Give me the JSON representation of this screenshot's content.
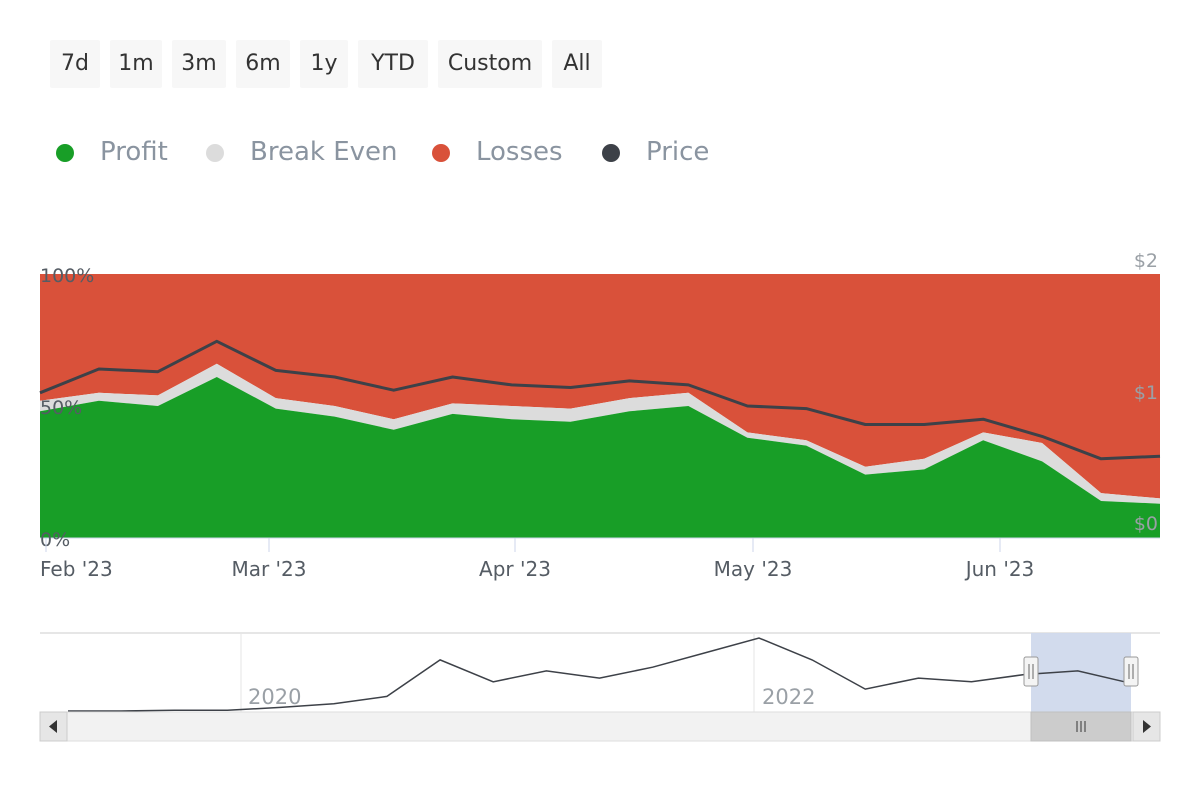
{
  "range_selector": {
    "buttons": [
      "7d",
      "1m",
      "3m",
      "6m",
      "1y",
      "YTD",
      "Custom",
      "All"
    ]
  },
  "legend": [
    {
      "label": "Profit",
      "color": "#189e27"
    },
    {
      "label": "Break Even",
      "color": "#dcdcdc"
    },
    {
      "label": "Losses",
      "color": "#d9513a"
    },
    {
      "label": "Price",
      "color": "#3d4148"
    }
  ],
  "colors": {
    "profit": "#189e27",
    "break_even": "#dcdcdc",
    "losses": "#d9513a",
    "price": "#3d4148",
    "navigator_mask": "#d0d9ec"
  },
  "chart_data": {
    "type": "area",
    "stacking": "percent",
    "x": [
      "2023-02-01",
      "2023-02-08",
      "2023-02-15",
      "2023-02-22",
      "2023-03-01",
      "2023-03-08",
      "2023-03-15",
      "2023-03-22",
      "2023-04-01",
      "2023-04-08",
      "2023-04-15",
      "2023-04-22",
      "2023-05-01",
      "2023-05-08",
      "2023-05-15",
      "2023-05-22",
      "2023-06-01",
      "2023-06-08",
      "2023-06-15",
      "2023-06-22"
    ],
    "series": [
      {
        "name": "Profit",
        "unit": "%",
        "values": [
          48,
          52,
          50,
          61,
          49,
          46,
          41,
          47,
          45,
          44,
          48,
          50,
          38,
          35,
          24,
          26,
          37,
          29,
          14,
          13
        ]
      },
      {
        "name": "Break Even",
        "unit": "%",
        "values": [
          4,
          3,
          4,
          5,
          4,
          4,
          4,
          4,
          5,
          5,
          5,
          5,
          2,
          2,
          3,
          4,
          3,
          7,
          3,
          2
        ]
      },
      {
        "name": "Losses",
        "unit": "%",
        "values": [
          48,
          45,
          46,
          34,
          47,
          50,
          55,
          49,
          50,
          51,
          47,
          45,
          60,
          63,
          73,
          70,
          60,
          64,
          83,
          85
        ]
      },
      {
        "name": "Price",
        "unit": "$",
        "axis": "right",
        "values": [
          1.1,
          1.28,
          1.26,
          1.49,
          1.27,
          1.22,
          1.12,
          1.22,
          1.16,
          1.14,
          1.19,
          1.16,
          1.0,
          0.98,
          0.86,
          0.86,
          0.9,
          0.77,
          0.6,
          0.62
        ]
      }
    ],
    "x_ticks": [
      "Feb '23",
      "Mar '23",
      "Apr '23",
      "May '23",
      "Jun '23"
    ],
    "y_left_ticks": [
      "0%",
      "50%",
      "100%"
    ],
    "y_right_ticks": [
      "$0",
      "$1",
      "$2"
    ],
    "ylim_left": [
      0,
      100
    ],
    "ylim_right": [
      0,
      2
    ],
    "navigator": {
      "labels": [
        "2020",
        "2022"
      ],
      "price": [
        0.0,
        0.0,
        0.01,
        0.01,
        0.05,
        0.1,
        0.2,
        0.7,
        0.4,
        0.55,
        0.45,
        0.6,
        0.8,
        1.0,
        0.7,
        0.3,
        0.45,
        0.4,
        0.5,
        0.55,
        0.38
      ]
    }
  }
}
